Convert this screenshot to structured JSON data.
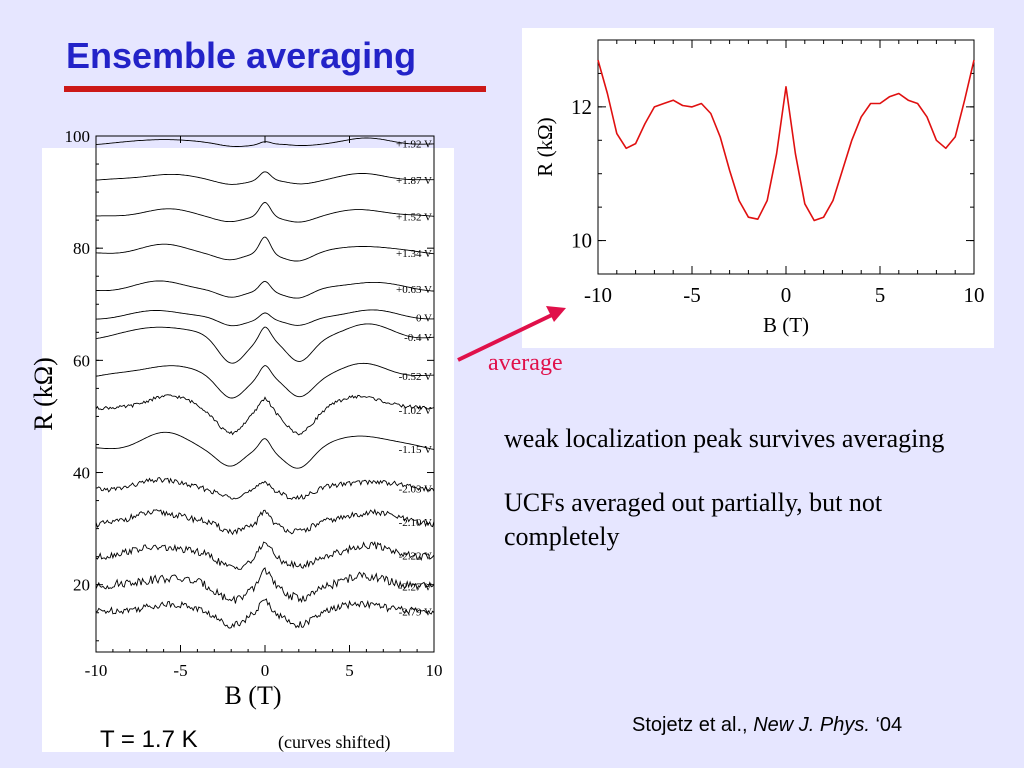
{
  "title": "Ensemble averaging",
  "left_footer": {
    "temperature": "T = 1.7 K",
    "note": "(curves shifted)"
  },
  "average_label": "average",
  "bullets": [
    "weak localization peak survives averaging",
    "UCFs averaged out partially, but not completely"
  ],
  "citation": {
    "authors": "Stojetz et al.,",
    "journal": "New J. Phys.",
    "year": "‘04"
  },
  "colors": {
    "title": "#2323c8",
    "rule": "#cc1818",
    "arrow": "#e0104a",
    "avg_curve": "#e01010",
    "background": "#e6e6ff"
  },
  "chart_data": [
    {
      "type": "line",
      "xlabel": "B (T)",
      "ylabel": "R (kΩ)",
      "xlim": [
        -10,
        10
      ],
      "ylim": [
        8,
        100
      ],
      "x_ticks": [
        "-10",
        "-5",
        "0",
        "5",
        "10"
      ],
      "y_ticks": [
        "20",
        "40",
        "60",
        "80",
        "100"
      ],
      "series": [
        {
          "name": "+1.92 V",
          "offset": 98.5,
          "amp": 1.0,
          "peak": 0.5,
          "dip": 0.3,
          "noise": 0.0
        },
        {
          "name": "+1.87 V",
          "offset": 92.0,
          "amp": 1.2,
          "peak": 1.5,
          "dip": 0.5,
          "noise": 0.0
        },
        {
          "name": "+1.52 V",
          "offset": 85.5,
          "amp": 1.4,
          "peak": 2.5,
          "dip": 0.7,
          "noise": 0.0
        },
        {
          "name": "+1.34 V",
          "offset": 79.0,
          "amp": 1.5,
          "peak": 3.0,
          "dip": 1.2,
          "noise": 0.0
        },
        {
          "name": "+0.63 V",
          "offset": 72.5,
          "amp": 1.5,
          "peak": 1.8,
          "dip": 1.5,
          "noise": 0.0
        },
        {
          "name": "0 V",
          "offset": 67.5,
          "amp": 1.4,
          "peak": 1.2,
          "dip": 1.5,
          "noise": 0.0
        },
        {
          "name": "-0.4 V",
          "offset": 64.0,
          "amp": 2.2,
          "peak": 2.2,
          "dip": 4.5,
          "noise": 0.0
        },
        {
          "name": "-0.52 V",
          "offset": 57.0,
          "amp": 2.2,
          "peak": 2.0,
          "dip": 3.5,
          "noise": 0.0
        },
        {
          "name": "-1.02 V",
          "offset": 51.0,
          "amp": 2.5,
          "peak": 2.0,
          "dip": 3.8,
          "noise": 0.12
        },
        {
          "name": "-1.15 V",
          "offset": 44.0,
          "amp": 2.8,
          "peak": 2.0,
          "dip": 3.0,
          "noise": 0.0
        },
        {
          "name": "-2.03 V",
          "offset": 37.0,
          "amp": 1.5,
          "peak": 1.6,
          "dip": 1.6,
          "noise": 0.18
        },
        {
          "name": "-2.10 V",
          "offset": 31.0,
          "amp": 1.8,
          "peak": 2.5,
          "dip": 1.8,
          "noise": 0.22
        },
        {
          "name": "-2.22 V",
          "offset": 25.0,
          "amp": 1.8,
          "peak": 2.8,
          "dip": 2.0,
          "noise": 0.25
        },
        {
          "name": "-2.27 V",
          "offset": 19.5,
          "amp": 1.8,
          "peak": 3.2,
          "dip": 2.0,
          "noise": 0.3
        },
        {
          "name": "-2.79 V",
          "offset": 15.0,
          "amp": 1.5,
          "peak": 2.0,
          "dip": 2.0,
          "noise": 0.25
        }
      ]
    },
    {
      "type": "line",
      "xlabel": "B (T)",
      "ylabel": "R (kΩ)",
      "xlim": [
        -10,
        10
      ],
      "ylim": [
        9.5,
        13.0
      ],
      "x_ticks": [
        "-10",
        "-5",
        "0",
        "5",
        "10"
      ],
      "y_ticks": [
        "10",
        "12"
      ],
      "series": [
        {
          "x": [
            -10,
            -9.5,
            -9,
            -8.5,
            -8,
            -7.5,
            -7,
            -6.5,
            -6,
            -5.5,
            -5,
            -4.5,
            -4,
            -3.5,
            -3,
            -2.5,
            -2,
            -1.5,
            -1,
            -0.5,
            0,
            0.5,
            1,
            1.5,
            2,
            2.5,
            3,
            3.5,
            4,
            4.5,
            5,
            5.5,
            6,
            6.5,
            7,
            7.5,
            8,
            8.5,
            9,
            9.5,
            10
          ],
          "y": [
            12.7,
            12.2,
            11.6,
            11.38,
            11.45,
            11.75,
            12.0,
            12.05,
            12.1,
            12.02,
            12.0,
            12.05,
            11.9,
            11.55,
            11.05,
            10.6,
            10.35,
            10.32,
            10.6,
            11.3,
            12.3,
            11.3,
            10.55,
            10.3,
            10.35,
            10.6,
            11.05,
            11.5,
            11.85,
            12.05,
            12.05,
            12.15,
            12.2,
            12.1,
            12.05,
            11.85,
            11.5,
            11.38,
            11.55,
            12.1,
            12.7
          ]
        }
      ]
    }
  ]
}
